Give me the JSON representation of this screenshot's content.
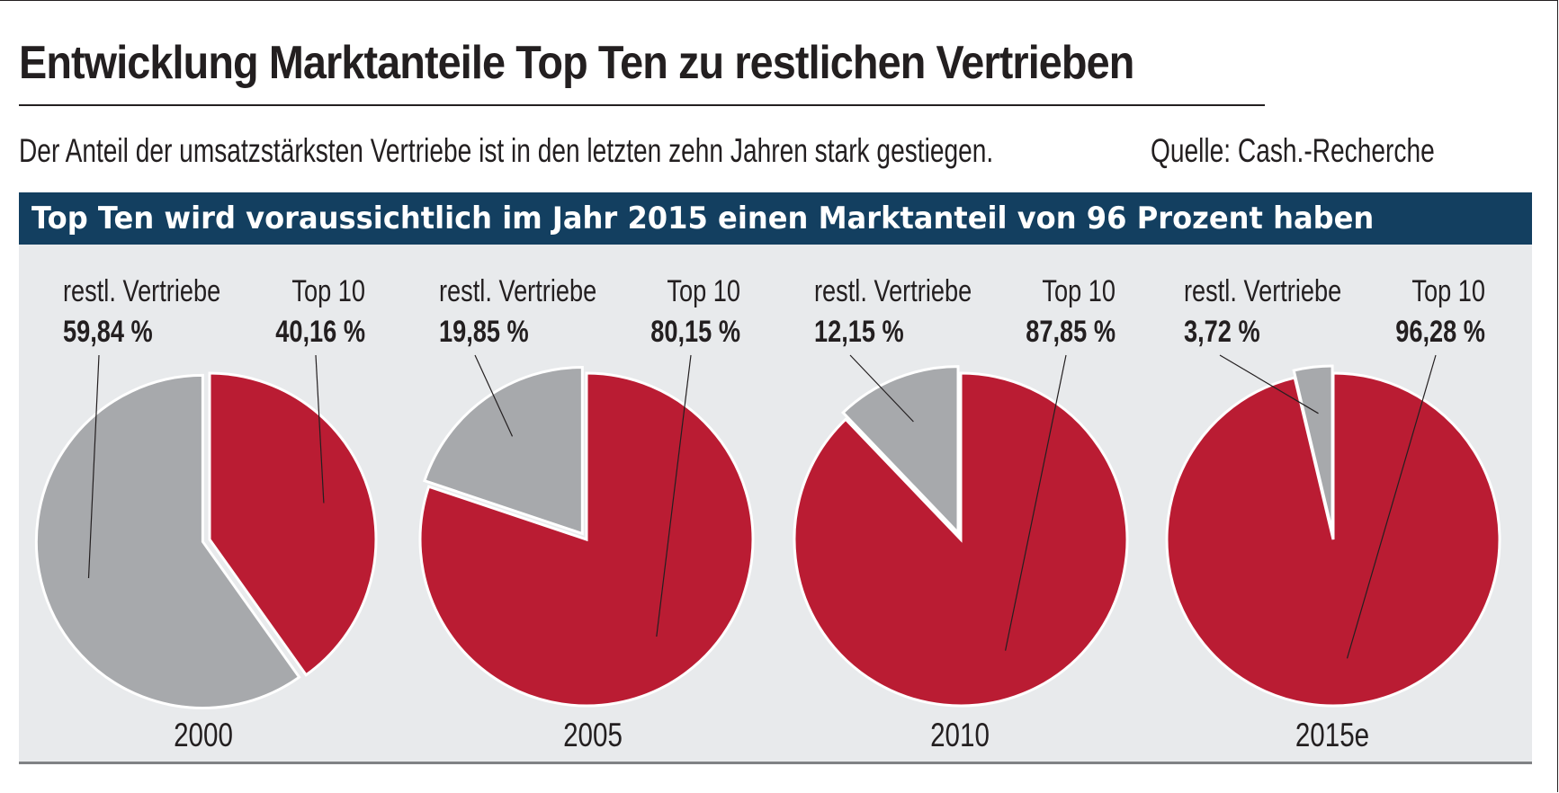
{
  "header": {
    "title": "Entwicklung Marktanteile Top Ten zu restlichen Vertrieben",
    "subtitle": "Der Anteil der umsatzstärksten Vertriebe ist in den letzten zehn Jahren stark gestiegen.",
    "source": "Quelle: Cash.-Recherche"
  },
  "banner": {
    "text": "Top Ten wird voraussichtlich im Jahr 2015 einen Marktanteil von 96 Prozent haben"
  },
  "colors": {
    "top10": "#ba1c33",
    "rest": "#a7a9ac",
    "banner": "#133f60",
    "panel": "#e8eaec",
    "text": "#231f20"
  },
  "chart_data": {
    "type": "pie",
    "unit": "%",
    "value_format": "comma-decimal",
    "pies": [
      {
        "year": "2000",
        "slices": [
          {
            "name": "Top 10",
            "value": 40.16,
            "value_label": "40,16",
            "color": "#ba1c33"
          },
          {
            "name": "restl. Vertriebe",
            "value": 59.84,
            "value_label": "59,84",
            "color": "#a7a9ac"
          }
        ]
      },
      {
        "year": "2005",
        "slices": [
          {
            "name": "Top 10",
            "value": 80.15,
            "value_label": "80,15",
            "color": "#ba1c33"
          },
          {
            "name": "restl. Vertriebe",
            "value": 19.85,
            "value_label": "19,85",
            "color": "#a7a9ac"
          }
        ]
      },
      {
        "year": "2010",
        "slices": [
          {
            "name": "Top 10",
            "value": 87.85,
            "value_label": "87,85",
            "color": "#ba1c33"
          },
          {
            "name": "restl. Vertriebe",
            "value": 12.15,
            "value_label": "12,15",
            "color": "#a7a9ac"
          }
        ]
      },
      {
        "year": "2015e",
        "slices": [
          {
            "name": "Top 10",
            "value": 96.28,
            "value_label": "96,28",
            "color": "#ba1c33"
          },
          {
            "name": "restl. Vertriebe",
            "value": 3.72,
            "value_label": "3,72",
            "color": "#a7a9ac"
          }
        ]
      }
    ]
  }
}
